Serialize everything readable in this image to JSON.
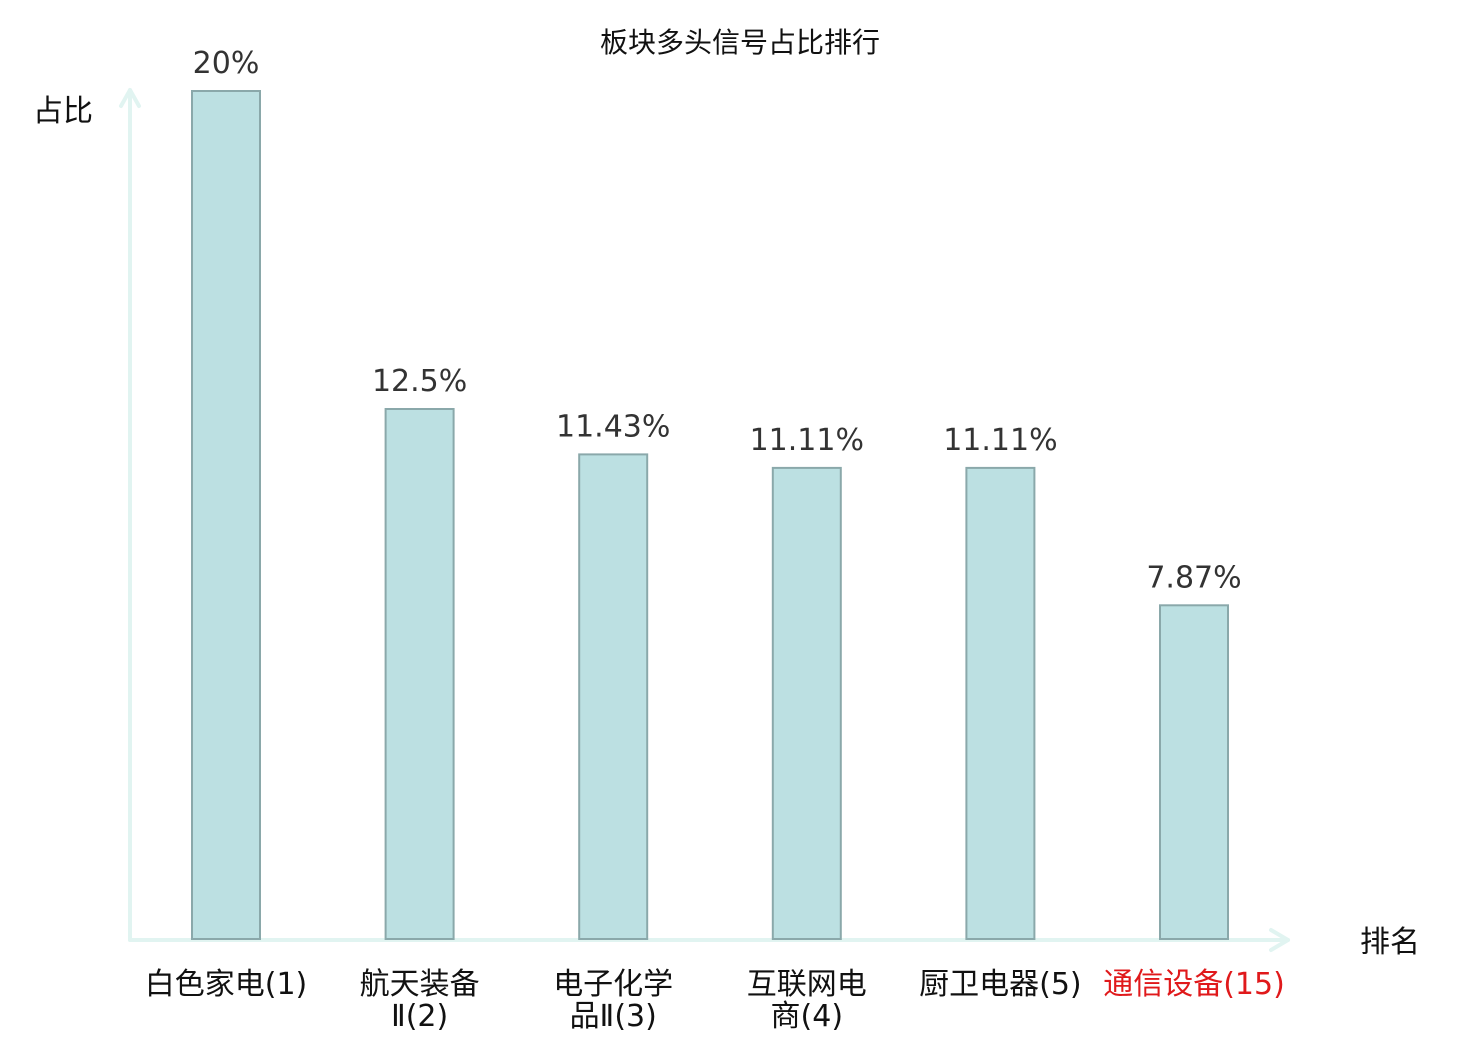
{
  "chart_data": {
    "type": "bar",
    "title": "板块多头信号占比排行",
    "ylabel": "占比",
    "xlabel": "排名",
    "categories": [
      [
        "白色家电(1)"
      ],
      [
        "航天装备",
        "Ⅱ(2)"
      ],
      [
        "电子化学",
        "品Ⅱ(3)"
      ],
      [
        "互联网电",
        "商(4)"
      ],
      [
        "厨卫电器(5)"
      ],
      [
        "通信设备(15)"
      ]
    ],
    "values": [
      20,
      12.5,
      11.43,
      11.11,
      11.11,
      7.87
    ],
    "value_labels": [
      "20%",
      "12.5%",
      "11.43%",
      "11.11%",
      "11.11%",
      "7.87%"
    ],
    "highlight_index": 5,
    "ylim": [
      0,
      20
    ],
    "grid": false,
    "colors": {
      "bar_fill": "#bce0e2",
      "bar_stroke": "#8aa8aa",
      "axis": "#e1f4f1",
      "highlight_text": "#e0191b"
    }
  }
}
